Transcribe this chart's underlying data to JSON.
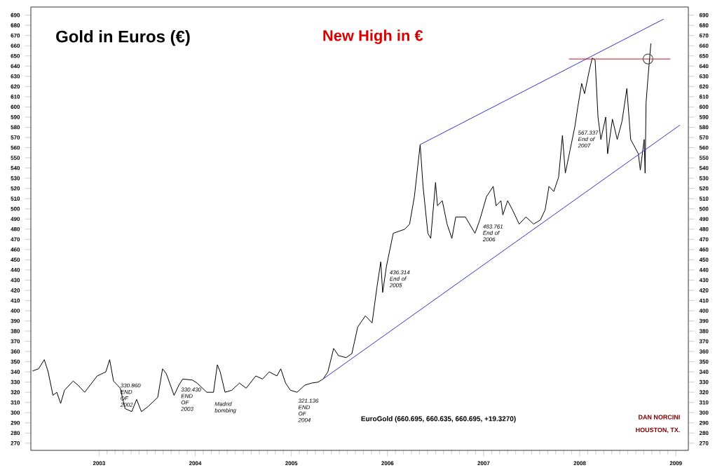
{
  "chart_data": {
    "type": "line",
    "title": "Gold in Euros (€)",
    "x": [
      2002.31,
      2002.37,
      2002.43,
      2002.47,
      2002.52,
      2002.56,
      2002.6,
      2002.64,
      2002.73,
      2002.78,
      2002.85,
      2002.98,
      2003.07,
      2003.11,
      2003.15,
      2003.22,
      2003.27,
      2003.34,
      2003.39,
      2003.44,
      2003.51,
      2003.61,
      2003.66,
      2003.7,
      2003.78,
      2003.83,
      2003.87,
      2003.97,
      2004.02,
      2004.12,
      2004.19,
      2004.23,
      2004.26,
      2004.31,
      2004.38,
      2004.46,
      2004.53,
      2004.63,
      2004.7,
      2004.77,
      2004.85,
      2004.89,
      2004.94,
      2004.99,
      2005.06,
      2005.14,
      2005.21,
      2005.28,
      2005.33,
      2005.38,
      2005.44,
      2005.49,
      2005.57,
      2005.63,
      2005.69,
      2005.77,
      2005.84,
      2005.89,
      2005.93,
      2005.95,
      2005.99,
      2006.06,
      2006.18,
      2006.23,
      2006.28,
      2006.34,
      2006.37,
      2006.42,
      2006.45,
      2006.5,
      2006.52,
      2006.57,
      2006.62,
      2006.67,
      2006.71,
      2006.81,
      2006.91,
      2006.96,
      2007.03,
      2007.1,
      2007.13,
      2007.18,
      2007.2,
      2007.25,
      2007.3,
      2007.37,
      2007.44,
      2007.52,
      2007.59,
      2007.64,
      2007.68,
      2007.73,
      2007.78,
      2007.82,
      2007.85,
      2007.9,
      2007.95,
      2007.98,
      2008.02,
      2008.05,
      2008.1,
      2008.13,
      2008.16,
      2008.19,
      2008.22,
      2008.27,
      2008.29,
      2008.34,
      2008.39,
      2008.44,
      2008.49,
      2008.53,
      2008.61,
      2008.63,
      2008.67,
      2008.68,
      2008.69,
      2008.71,
      2008.74
    ],
    "series": [
      {
        "color": "#000000",
        "values": [
          341,
          343,
          352,
          340,
          317,
          320,
          309,
          322,
          331,
          327,
          320,
          336,
          340,
          352,
          331,
          324,
          304,
          301,
          313,
          301,
          306,
          315,
          343,
          338,
          317,
          327,
          333,
          332,
          329,
          320,
          320,
          347,
          340,
          320,
          322,
          329,
          324,
          336,
          333,
          340,
          336,
          343,
          329,
          322,
          320,
          327,
          329,
          330,
          333,
          340,
          363,
          356,
          354,
          358,
          384,
          395,
          388,
          423,
          448,
          418,
          444,
          476,
          480,
          485,
          512,
          563,
          522,
          476,
          471,
          526,
          503,
          508,
          485,
          471,
          492,
          492,
          476,
          489,
          512,
          522,
          503,
          508,
          494,
          508,
          499,
          485,
          492,
          485,
          489,
          499,
          522,
          517,
          531,
          572,
          535,
          558,
          581,
          600,
          623,
          613,
          636,
          648,
          646,
          590,
          568,
          590,
          554,
          588,
          568,
          586,
          618,
          568,
          554,
          538,
          568,
          535,
          604,
          629,
          662
        ]
      },
      {
        "color": "#3333cc",
        "x": [
          2006.34,
          2008.87
        ],
        "values": [
          563,
          686
        ]
      },
      {
        "color": "#3333cc",
        "x": [
          2005.33,
          2009.04
        ],
        "values": [
          333,
          582
        ]
      },
      {
        "color": "#cc1122",
        "x": [
          2007.89,
          2008.94
        ],
        "values": [
          647,
          647
        ]
      },
      {
        "type": "scatter",
        "marker": "circle",
        "color": "#555555",
        "x": [
          2008.71
        ],
        "values": [
          647
        ]
      }
    ],
    "xlim": [
      2002.29,
      2009.13
    ],
    "xticks": [
      2003,
      2004,
      2005,
      2006,
      2007,
      2008,
      2009
    ],
    "ylim": [
      263,
      698
    ],
    "yticks": [
      270,
      280,
      290,
      300,
      310,
      320,
      330,
      340,
      350,
      360,
      370,
      380,
      390,
      400,
      410,
      420,
      430,
      440,
      450,
      460,
      470,
      480,
      490,
      500,
      510,
      520,
      530,
      540,
      550,
      560,
      570,
      580,
      590,
      600,
      610,
      620,
      630,
      640,
      650,
      660,
      670,
      680,
      690
    ],
    "y2lim": [
      263,
      698
    ],
    "y2ticks": [
      270,
      280,
      290,
      300,
      310,
      320,
      330,
      340,
      350,
      360,
      370,
      380,
      390,
      400,
      410,
      420,
      430,
      440,
      450,
      460,
      470,
      480,
      490,
      500,
      510,
      520,
      530,
      540,
      550,
      560,
      570,
      580,
      590,
      600,
      610,
      620,
      630,
      640,
      650,
      660,
      670,
      680,
      690
    ],
    "marker": "none",
    "annotations": [
      "New High in €",
      "EuroGold (660.695, 660.635, 660.695, +19.3270)",
      "DAN NORCINI",
      "HOUSTON, TX.",
      {
        "text": "330.860 END OF 2002",
        "x": 2003.19,
        "y": 333
      },
      {
        "text": "330.430 END OF 2003",
        "x": 2003.82,
        "y": 329
      },
      {
        "text": "Madrid bombing",
        "x": 2004.17,
        "y": 315
      },
      {
        "text": "321.136 END OF 2004",
        "x": 2005.04,
        "y": 318
      },
      {
        "text": "436.314 End of 2005",
        "x": 2005.99,
        "y": 444
      },
      {
        "text": "483.761 End of 2006",
        "x": 2006.96,
        "y": 489
      },
      {
        "text": "567.337 End of 2007",
        "x": 2007.95,
        "y": 581
      }
    ]
  }
}
